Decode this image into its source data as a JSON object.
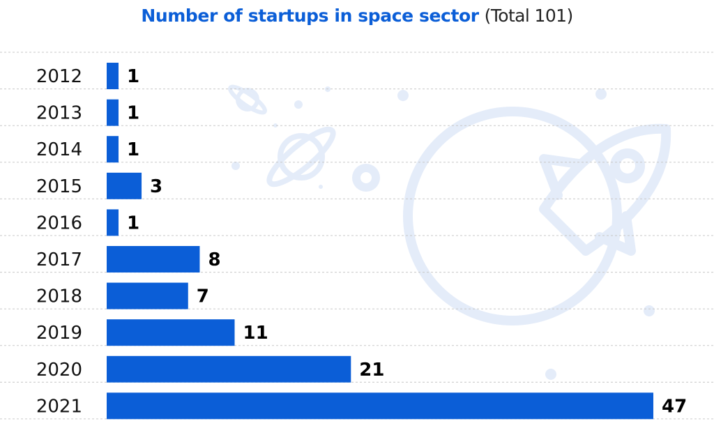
{
  "chart_data": {
    "type": "bar",
    "orientation": "horizontal",
    "title": "Number of startups in space sector",
    "subtitle": "(Total 101)",
    "categories": [
      "2012",
      "2013",
      "2014",
      "2015",
      "2016",
      "2017",
      "2018",
      "2019",
      "2020",
      "2021"
    ],
    "values": [
      1,
      1,
      1,
      3,
      1,
      8,
      7,
      11,
      21,
      47
    ],
    "xlabel": "",
    "ylabel": "",
    "xlim": [
      0,
      47
    ],
    "grid": "dashed horizontal separators",
    "legend": "none",
    "bar_color": "#0b5ed7",
    "background_illustration": [
      "rocket-icon",
      "planet-icon",
      "star-icon"
    ],
    "illustration_color": "#e4ecf9"
  }
}
